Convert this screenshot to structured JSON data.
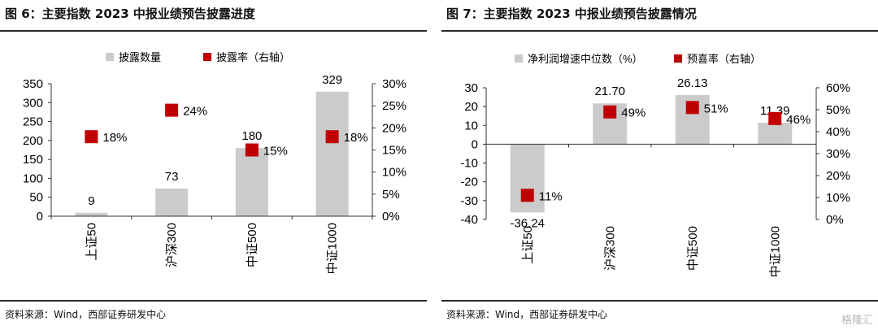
{
  "left": {
    "title": "图 6：主要指数 2023 中报业绩预告披露进度",
    "source": "资料来源：Wind，西部证券研发中心"
  },
  "right": {
    "title": "图 7：主要指数 2023 中报业绩预告披露情况",
    "source": "资料来源：Wind，西部证券研发中心"
  },
  "watermark": "格隆汇",
  "chart_data": [
    {
      "type": "bar",
      "categories": [
        "上证50",
        "沪深300",
        "中证500",
        "中证1000"
      ],
      "series": [
        {
          "name": "披露数量",
          "kind": "bar",
          "axis": "left",
          "color": "#cbcbcb",
          "values": [
            9,
            73,
            180,
            329
          ],
          "labels": [
            "9",
            "73",
            "180",
            "329"
          ]
        },
        {
          "name": "披露率（右轴）",
          "kind": "marker",
          "axis": "right",
          "color": "#c00000",
          "values": [
            0.18,
            0.24,
            0.15,
            0.18
          ],
          "labels": [
            "18%",
            "24%",
            "15%",
            "18%"
          ]
        }
      ],
      "ylim": [
        0,
        350
      ],
      "yticks": [
        "0",
        "50",
        "100",
        "150",
        "200",
        "250",
        "300",
        "350"
      ],
      "y2lim": [
        0,
        0.3
      ],
      "y2ticks": [
        "0%",
        "5%",
        "10%",
        "15%",
        "20%",
        "25%",
        "30%"
      ],
      "legend_position": "top"
    },
    {
      "type": "bar",
      "categories": [
        "上证50",
        "沪深300",
        "中证500",
        "中证1000"
      ],
      "series": [
        {
          "name": "净利润增速中位数（%）",
          "kind": "bar",
          "axis": "left",
          "color": "#cbcbcb",
          "values": [
            -36.24,
            21.7,
            26.13,
            11.39
          ],
          "labels": [
            "-36.24",
            "21.70",
            "26.13",
            "11.39"
          ]
        },
        {
          "name": "预喜率（右轴）",
          "kind": "marker",
          "axis": "right",
          "color": "#c00000",
          "values": [
            0.11,
            0.49,
            0.51,
            0.46
          ],
          "labels": [
            "11%",
            "49%",
            "51%",
            "46%"
          ]
        }
      ],
      "ylim": [
        -40,
        30
      ],
      "yticks": [
        "-40",
        "-30",
        "-20",
        "-10",
        "0",
        "10",
        "20",
        "30"
      ],
      "y2lim": [
        0,
        0.6
      ],
      "y2ticks": [
        "0%",
        "10%",
        "20%",
        "30%",
        "40%",
        "50%",
        "60%"
      ],
      "legend_position": "top"
    }
  ]
}
